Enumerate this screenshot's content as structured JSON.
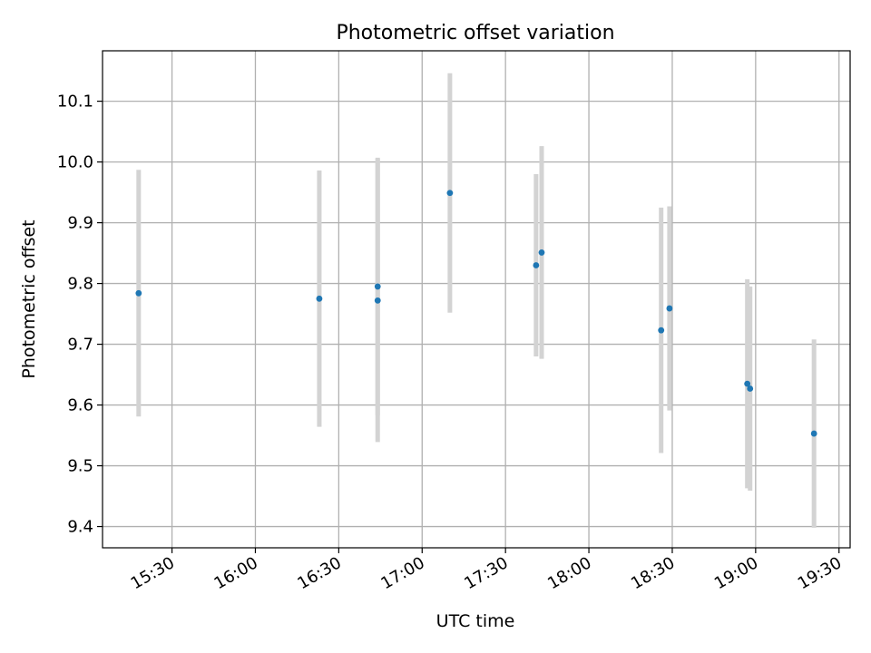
{
  "chart_data": {
    "type": "scatter",
    "title": "Photometric offset variation",
    "xlabel": "UTC time",
    "ylabel": "Photometric offset",
    "x_ticks": [
      "15:30",
      "16:00",
      "16:30",
      "17:00",
      "17:30",
      "18:00",
      "18:30",
      "19:00",
      "19:30"
    ],
    "y_ticks": [
      "9.4",
      "9.5",
      "9.6",
      "9.7",
      "9.8",
      "9.9",
      "10.0",
      "10.1"
    ],
    "xlim": [
      "15:05",
      "19:34"
    ],
    "ylim": [
      9.365,
      10.183
    ],
    "grid": true,
    "point_color": "#1f77b4",
    "errorbar_color": "#d3d3d3",
    "points": [
      {
        "x": "15:18",
        "y": 9.784,
        "err": 0.203
      },
      {
        "x": "16:23",
        "y": 9.775,
        "err": 0.211
      },
      {
        "x": "16:44",
        "y": 9.772,
        "err": 0.233
      },
      {
        "x": "16:44",
        "y": 9.795,
        "err": 0.212
      },
      {
        "x": "17:10",
        "y": 9.949,
        "err": 0.197
      },
      {
        "x": "17:41",
        "y": 9.83,
        "err": 0.15
      },
      {
        "x": "17:43",
        "y": 9.851,
        "err": 0.175
      },
      {
        "x": "18:26",
        "y": 9.723,
        "err": 0.202
      },
      {
        "x": "18:29",
        "y": 9.759,
        "err": 0.168
      },
      {
        "x": "18:57",
        "y": 9.635,
        "err": 0.172
      },
      {
        "x": "18:58",
        "y": 9.627,
        "err": 0.168
      },
      {
        "x": "19:21",
        "y": 9.553,
        "err": 0.155
      }
    ]
  }
}
